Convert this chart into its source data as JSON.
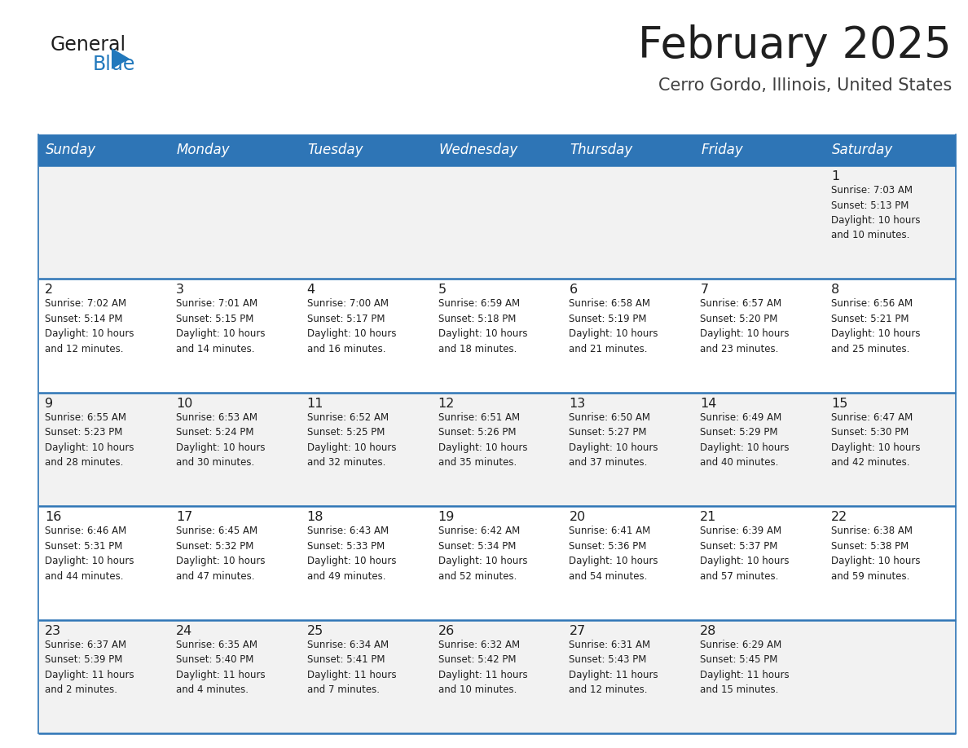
{
  "title": "February 2025",
  "subtitle": "Cerro Gordo, Illinois, United States",
  "days_of_week": [
    "Sunday",
    "Monday",
    "Tuesday",
    "Wednesday",
    "Thursday",
    "Friday",
    "Saturday"
  ],
  "header_bg": "#2E75B6",
  "header_text": "#FFFFFF",
  "row_bg_odd": "#F2F2F2",
  "row_bg_even": "#FFFFFF",
  "border_color": "#2E75B6",
  "title_color": "#1F1F1F",
  "subtitle_color": "#404040",
  "day_number_color": "#1F1F1F",
  "cell_text_color": "#1F1F1F",
  "logo_general_color": "#1F1F1F",
  "logo_blue_color": "#2178BC",
  "weeks": [
    [
      {
        "day": null,
        "info": null
      },
      {
        "day": null,
        "info": null
      },
      {
        "day": null,
        "info": null
      },
      {
        "day": null,
        "info": null
      },
      {
        "day": null,
        "info": null
      },
      {
        "day": null,
        "info": null
      },
      {
        "day": 1,
        "info": "Sunrise: 7:03 AM\nSunset: 5:13 PM\nDaylight: 10 hours\nand 10 minutes."
      }
    ],
    [
      {
        "day": 2,
        "info": "Sunrise: 7:02 AM\nSunset: 5:14 PM\nDaylight: 10 hours\nand 12 minutes."
      },
      {
        "day": 3,
        "info": "Sunrise: 7:01 AM\nSunset: 5:15 PM\nDaylight: 10 hours\nand 14 minutes."
      },
      {
        "day": 4,
        "info": "Sunrise: 7:00 AM\nSunset: 5:17 PM\nDaylight: 10 hours\nand 16 minutes."
      },
      {
        "day": 5,
        "info": "Sunrise: 6:59 AM\nSunset: 5:18 PM\nDaylight: 10 hours\nand 18 minutes."
      },
      {
        "day": 6,
        "info": "Sunrise: 6:58 AM\nSunset: 5:19 PM\nDaylight: 10 hours\nand 21 minutes."
      },
      {
        "day": 7,
        "info": "Sunrise: 6:57 AM\nSunset: 5:20 PM\nDaylight: 10 hours\nand 23 minutes."
      },
      {
        "day": 8,
        "info": "Sunrise: 6:56 AM\nSunset: 5:21 PM\nDaylight: 10 hours\nand 25 minutes."
      }
    ],
    [
      {
        "day": 9,
        "info": "Sunrise: 6:55 AM\nSunset: 5:23 PM\nDaylight: 10 hours\nand 28 minutes."
      },
      {
        "day": 10,
        "info": "Sunrise: 6:53 AM\nSunset: 5:24 PM\nDaylight: 10 hours\nand 30 minutes."
      },
      {
        "day": 11,
        "info": "Sunrise: 6:52 AM\nSunset: 5:25 PM\nDaylight: 10 hours\nand 32 minutes."
      },
      {
        "day": 12,
        "info": "Sunrise: 6:51 AM\nSunset: 5:26 PM\nDaylight: 10 hours\nand 35 minutes."
      },
      {
        "day": 13,
        "info": "Sunrise: 6:50 AM\nSunset: 5:27 PM\nDaylight: 10 hours\nand 37 minutes."
      },
      {
        "day": 14,
        "info": "Sunrise: 6:49 AM\nSunset: 5:29 PM\nDaylight: 10 hours\nand 40 minutes."
      },
      {
        "day": 15,
        "info": "Sunrise: 6:47 AM\nSunset: 5:30 PM\nDaylight: 10 hours\nand 42 minutes."
      }
    ],
    [
      {
        "day": 16,
        "info": "Sunrise: 6:46 AM\nSunset: 5:31 PM\nDaylight: 10 hours\nand 44 minutes."
      },
      {
        "day": 17,
        "info": "Sunrise: 6:45 AM\nSunset: 5:32 PM\nDaylight: 10 hours\nand 47 minutes."
      },
      {
        "day": 18,
        "info": "Sunrise: 6:43 AM\nSunset: 5:33 PM\nDaylight: 10 hours\nand 49 minutes."
      },
      {
        "day": 19,
        "info": "Sunrise: 6:42 AM\nSunset: 5:34 PM\nDaylight: 10 hours\nand 52 minutes."
      },
      {
        "day": 20,
        "info": "Sunrise: 6:41 AM\nSunset: 5:36 PM\nDaylight: 10 hours\nand 54 minutes."
      },
      {
        "day": 21,
        "info": "Sunrise: 6:39 AM\nSunset: 5:37 PM\nDaylight: 10 hours\nand 57 minutes."
      },
      {
        "day": 22,
        "info": "Sunrise: 6:38 AM\nSunset: 5:38 PM\nDaylight: 10 hours\nand 59 minutes."
      }
    ],
    [
      {
        "day": 23,
        "info": "Sunrise: 6:37 AM\nSunset: 5:39 PM\nDaylight: 11 hours\nand 2 minutes."
      },
      {
        "day": 24,
        "info": "Sunrise: 6:35 AM\nSunset: 5:40 PM\nDaylight: 11 hours\nand 4 minutes."
      },
      {
        "day": 25,
        "info": "Sunrise: 6:34 AM\nSunset: 5:41 PM\nDaylight: 11 hours\nand 7 minutes."
      },
      {
        "day": 26,
        "info": "Sunrise: 6:32 AM\nSunset: 5:42 PM\nDaylight: 11 hours\nand 10 minutes."
      },
      {
        "day": 27,
        "info": "Sunrise: 6:31 AM\nSunset: 5:43 PM\nDaylight: 11 hours\nand 12 minutes."
      },
      {
        "day": 28,
        "info": "Sunrise: 6:29 AM\nSunset: 5:45 PM\nDaylight: 11 hours\nand 15 minutes."
      },
      {
        "day": null,
        "info": null
      }
    ]
  ],
  "fig_width": 11.88,
  "fig_height": 9.18,
  "dpi": 100
}
